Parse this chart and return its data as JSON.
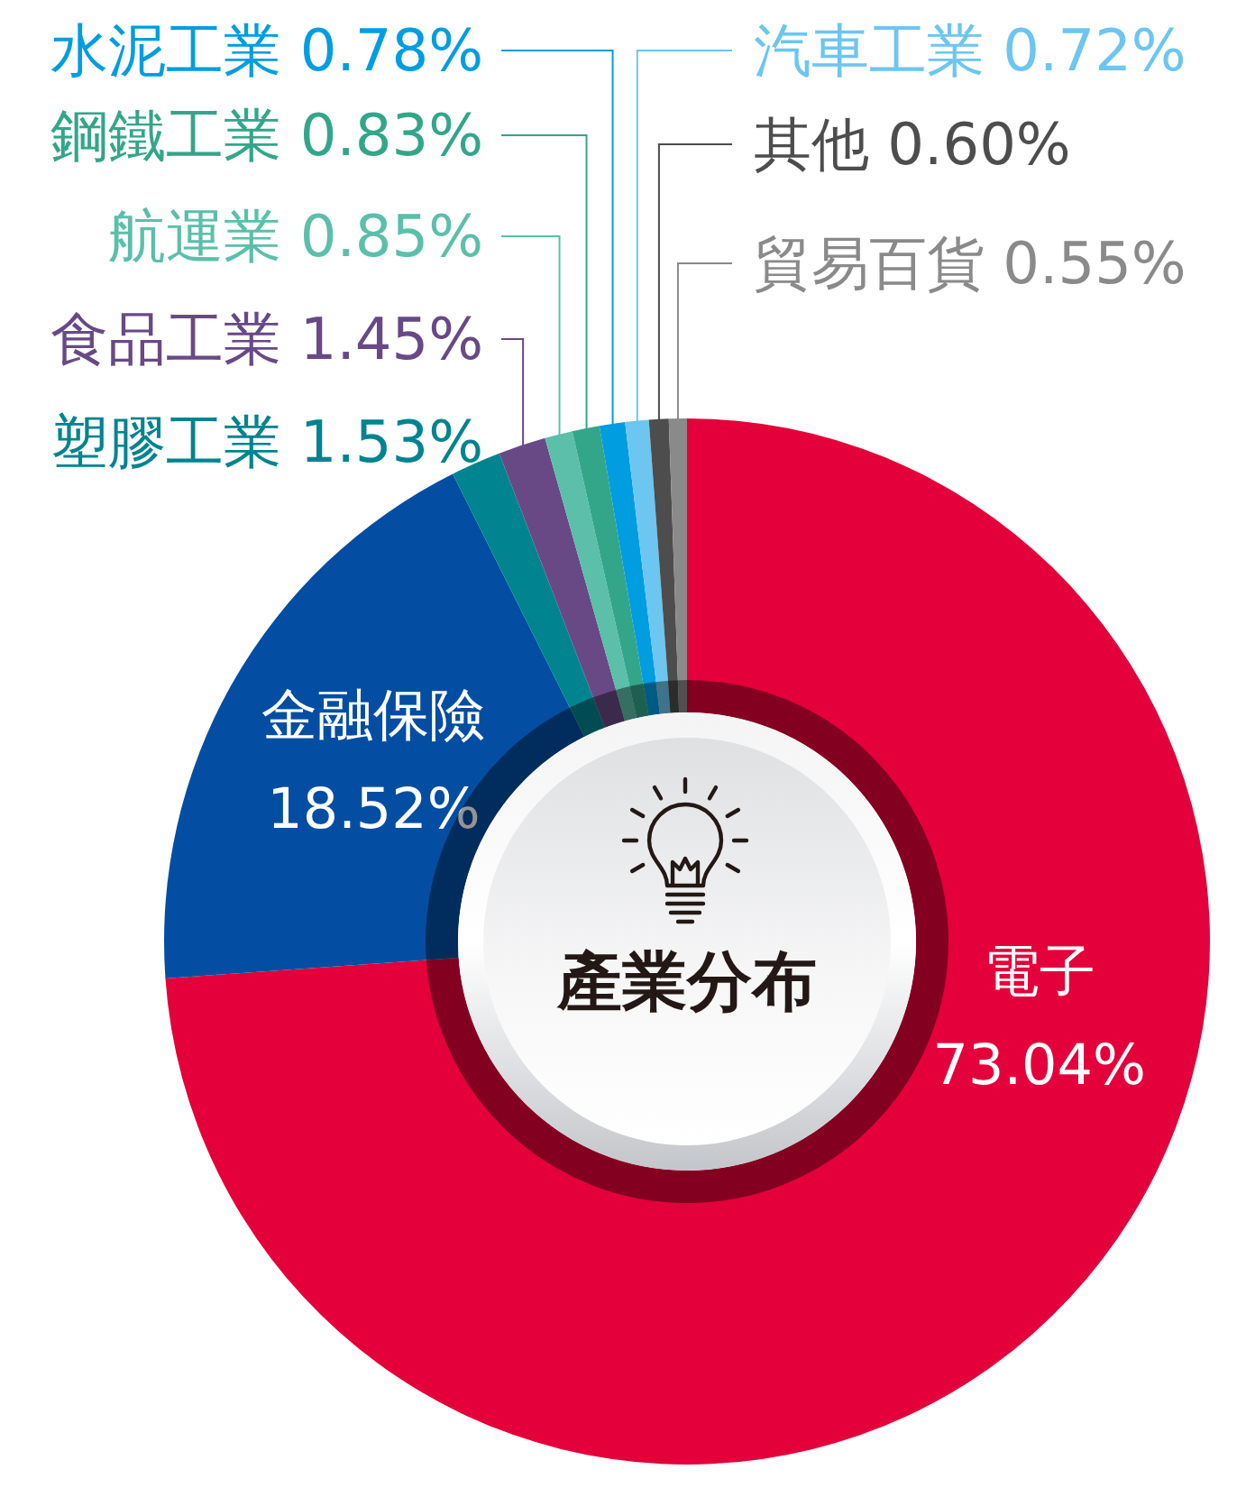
{
  "chart_data": {
    "type": "donut",
    "title": "產業分布",
    "categories": [
      "電子",
      "金融保險",
      "塑膠工業",
      "食品工業",
      "航運業",
      "鋼鐵工業",
      "水泥工業",
      "汽車工業",
      "其他",
      "貿易百貨"
    ],
    "values": [
      73.04,
      18.52,
      1.53,
      1.45,
      0.85,
      0.83,
      0.78,
      0.72,
      0.6,
      0.55
    ],
    "value_labels": [
      "73.04%",
      "18.52%",
      "1.53%",
      "1.45%",
      "0.85%",
      "0.83%",
      "0.78%",
      "0.72%",
      "0.60%",
      "0.55%"
    ],
    "colors": [
      "#e4003a",
      "#034ea2",
      "#00848f",
      "#684986",
      "#5bbfaa",
      "#33a68a",
      "#009de0",
      "#6cc6f0",
      "#4d4d4d",
      "#8a8a8a"
    ],
    "legend": false
  }
}
